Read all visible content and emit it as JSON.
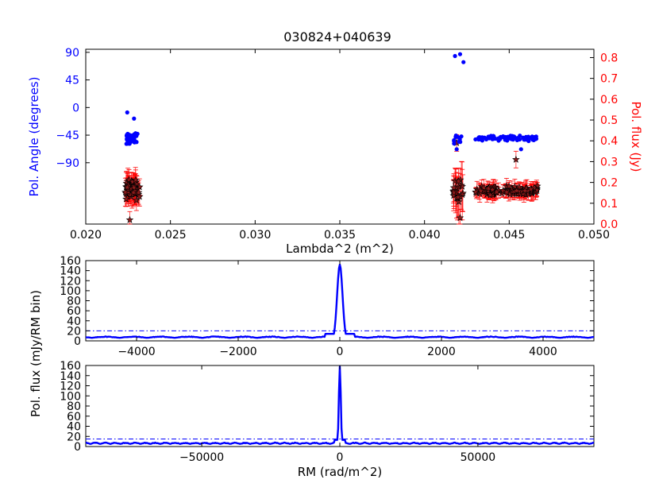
{
  "figure": {
    "title": "030824+040639"
  },
  "colors": {
    "angle": "#0000ff",
    "flux": "#ff0000",
    "axis": "#000000",
    "fdf": "#0000ff",
    "marker_face": "#8b1a1a"
  },
  "chart_data": [
    {
      "id": "top",
      "type": "scatter",
      "title": "030824+040639",
      "xlabel": "Lambda^2 (m^2)",
      "ylabel_left": "Pol. Angle (degrees)",
      "ylabel_right": "Pol. flux (Jy)",
      "xlim": [
        0.02,
        0.05
      ],
      "ylim_left": [
        -190,
        95
      ],
      "ylim_right": [
        0.0,
        0.84
      ],
      "x_ticks": [
        0.02,
        0.025,
        0.03,
        0.035,
        0.04,
        0.045,
        0.05
      ],
      "x_tick_labels": [
        "0.020",
        "0.025",
        "0.030",
        "0.035",
        "0.040",
        "0.045",
        "0.050"
      ],
      "y_left_ticks": [
        90,
        45,
        0,
        -45,
        -90
      ],
      "y_left_tick_labels": [
        "90",
        "45",
        "0",
        "−45",
        "−90"
      ],
      "y_right_ticks": [
        0.0,
        0.1,
        0.2,
        0.3,
        0.4,
        0.5,
        0.6,
        0.7,
        0.8
      ],
      "y_right_tick_labels": [
        "0.0",
        "0.1",
        "0.2",
        "0.3",
        "0.4",
        "0.5",
        "0.6",
        "0.7",
        "0.8"
      ],
      "series": [
        {
          "kind": "angle",
          "color": "#0000ff",
          "clusters": [
            {
              "x_range": [
                0.0224,
                0.0231
              ],
              "y_center": -50,
              "y_spread": 10,
              "n": 40
            },
            {
              "x_range": [
                0.043,
                0.0467
              ],
              "y_center": -50,
              "y_spread": 5,
              "n": 80
            },
            {
              "x_range": [
                0.0417,
                0.0422
              ],
              "y_center": -50,
              "y_spread": 10,
              "n": 10
            }
          ],
          "outliers": [
            {
              "x": 0.02245,
              "y": -8
            },
            {
              "x": 0.02285,
              "y": -18
            },
            {
              "x": 0.0418,
              "y": 84
            },
            {
              "x": 0.0421,
              "y": 87
            },
            {
              "x": 0.0423,
              "y": 74
            },
            {
              "x": 0.0457,
              "y": -68
            },
            {
              "x": 0.0419,
              "y": -68
            }
          ]
        },
        {
          "kind": "flux",
          "marker": "star",
          "color": "#ff0000",
          "clusters": [
            {
              "x_range": [
                0.0223,
                0.0232
              ],
              "y_center": 0.165,
              "y_spread": 0.06,
              "n": 60,
              "err": 0.05
            },
            {
              "x_range": [
                0.043,
                0.0467
              ],
              "y_center": 0.16,
              "y_spread": 0.025,
              "n": 110,
              "err": 0.03
            },
            {
              "x_range": [
                0.0417,
                0.0423
              ],
              "y_center": 0.16,
              "y_spread": 0.08,
              "n": 22,
              "err": 0.09
            }
          ],
          "outliers": [
            {
              "x": 0.0226,
              "y": 0.02
            },
            {
              "x": 0.0419,
              "y": 0.39
            },
            {
              "x": 0.0454,
              "y": 0.31
            },
            {
              "x": 0.0421,
              "y": 0.03
            }
          ]
        }
      ]
    },
    {
      "id": "middle",
      "type": "line",
      "xlim": [
        -5000,
        5000
      ],
      "ylim": [
        0,
        160
      ],
      "x_ticks": [
        -4000,
        -2000,
        0,
        2000,
        4000
      ],
      "x_tick_labels": [
        "−4000",
        "−2000",
        "0",
        "2000",
        "4000"
      ],
      "y_ticks": [
        0,
        20,
        40,
        60,
        80,
        100,
        120,
        140,
        160
      ],
      "y_tick_labels": [
        "0",
        "20",
        "40",
        "60",
        "80",
        "100",
        "120",
        "140",
        "160"
      ],
      "threshold": 20,
      "peak": {
        "x": 0,
        "y": 152,
        "width": 75
      },
      "baseline": 6,
      "ripple": 3
    },
    {
      "id": "bottom",
      "type": "line",
      "xlim": [
        -92000,
        92000
      ],
      "ylim": [
        0,
        160
      ],
      "xlabel": "RM (rad/m^2)",
      "x_ticks": [
        -50000,
        0,
        50000
      ],
      "x_tick_labels": [
        "−50000",
        "0",
        "50000"
      ],
      "y_ticks": [
        0,
        20,
        40,
        60,
        80,
        100,
        120,
        140,
        160
      ],
      "y_tick_labels": [
        "0",
        "20",
        "40",
        "60",
        "80",
        "100",
        "120",
        "140",
        "160"
      ],
      "threshold": 15,
      "peak": {
        "x": 0,
        "y": 158,
        "width": 500
      },
      "baseline": 5,
      "ripple": 3
    }
  ],
  "shared_ylabel": "Pol. flux (mJy/RM bin)"
}
